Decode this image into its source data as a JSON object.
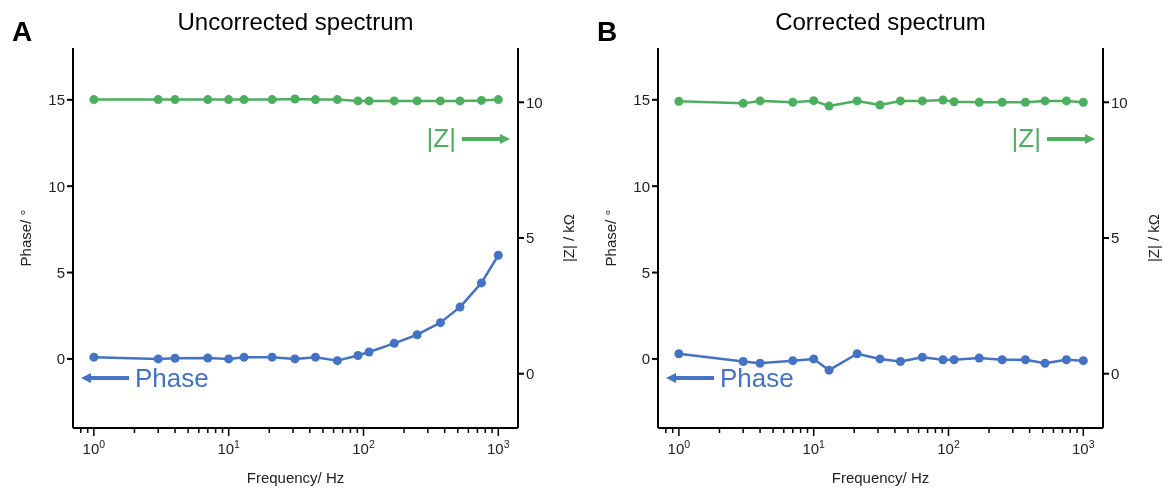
{
  "chart_data": [
    {
      "type": "line",
      "title": "Uncorrected spectrum",
      "xlabel": "Frequency/ Hz",
      "ylabel": "Phase/ °",
      "y2label": "|Z| / kΩ",
      "annotations": [
        "A"
      ],
      "x": [
        1,
        3,
        4,
        7,
        10,
        13,
        21,
        31,
        44,
        64,
        91,
        110,
        169,
        250,
        372,
        520,
        750,
        1000
      ],
      "series": [
        {
          "name": "Phase",
          "color": "#4472c4",
          "values": [
            0.1,
            0,
            0.04,
            0.05,
            0,
            0.1,
            0.1,
            0,
            0.1,
            -0.1,
            0.2,
            0.4,
            0.9,
            1.4,
            2.1,
            3.0,
            4.4,
            6.0
          ]
        },
        {
          "name": "|Z|",
          "color": "#4caf5f",
          "axis": "y2",
          "values": [
            10.1,
            10.1,
            10.1,
            10.1,
            10.1,
            10.1,
            10.1,
            10.12,
            10.1,
            10.1,
            10.05,
            10.05,
            10.05,
            10.05,
            10.05,
            10.05,
            10.07,
            10.1
          ]
        }
      ],
      "log": "x",
      "xlim": [
        0.7,
        1400
      ],
      "xticks": [
        {
          "value": 0.8,
          "label": null
        },
        {
          "value": 0.9,
          "label": null
        },
        {
          "value": 1,
          "label": "10$^{0}$"
        },
        {
          "value": 2,
          "label": null
        },
        {
          "value": 3,
          "label": null
        },
        {
          "value": 4,
          "label": null
        },
        {
          "value": 5,
          "label": null
        },
        {
          "value": 6,
          "label": null
        },
        {
          "value": 7,
          "label": null
        },
        {
          "value": 8,
          "label": null
        },
        {
          "value": 9,
          "label": null
        },
        {
          "value": 10,
          "label": "10$^{1}$"
        },
        {
          "value": 20,
          "label": null
        },
        {
          "value": 30,
          "label": null
        },
        {
          "value": 40,
          "label": null
        },
        {
          "value": 50,
          "label": null
        },
        {
          "value": 60,
          "label": null
        },
        {
          "value": 70,
          "label": null
        },
        {
          "value": 80,
          "label": null
        },
        {
          "value": 90,
          "label": null
        },
        {
          "value": 100,
          "label": "10$^{2}$"
        },
        {
          "value": 200,
          "label": null
        },
        {
          "value": 300,
          "label": null
        },
        {
          "value": 400,
          "label": null
        },
        {
          "value": 500,
          "label": null
        },
        {
          "value": 600,
          "label": null
        },
        {
          "value": 700,
          "label": null
        },
        {
          "value": 800,
          "label": null
        },
        {
          "value": 900,
          "label": null
        },
        {
          "value": 1000,
          "label": "10$^{3}$"
        }
      ],
      "ylim": [
        -4,
        18
      ],
      "yticks": [
        0,
        5,
        10,
        15
      ],
      "y2lim": [
        -2,
        12
      ],
      "y2ticks": [
        0,
        5,
        10
      ],
      "grid": false,
      "legend": "bottom left",
      "marker": "circle",
      "line_style": "solid"
    },
    {
      "type": "line",
      "title": "Corrected spectrum",
      "xlabel": "Frequency/ Hz",
      "ylabel": "Phase/ °",
      "y2label": "|Z| / kΩ",
      "annotations": [
        "B"
      ],
      "x": [
        1,
        3,
        4,
        7,
        10,
        13,
        21,
        31,
        44,
        64,
        91,
        110,
        169,
        250,
        372,
        520,
        750,
        1000
      ],
      "series": [
        {
          "name": "Phase",
          "color": "#4472c4",
          "values": [
            0.3,
            -0.15,
            -0.25,
            -0.1,
            0,
            -0.65,
            0.3,
            0,
            -0.15,
            0.1,
            -0.05,
            -0.05,
            0.05,
            -0.05,
            -0.05,
            -0.25,
            -0.05,
            -0.1
          ]
        },
        {
          "name": "|Z|",
          "color": "#4caf5f",
          "axis": "y2",
          "values": [
            10.04,
            9.96,
            10.05,
            10.0,
            10.06,
            9.86,
            10.05,
            9.9,
            10.05,
            10.05,
            10.08,
            10.02,
            10.0,
            10.0,
            10.0,
            10.05,
            10.05,
            10.0
          ]
        }
      ],
      "log": "x",
      "xlim": [
        0.7,
        1400
      ],
      "xticks": [
        {
          "value": 0.8,
          "label": null
        },
        {
          "value": 0.9,
          "label": null
        },
        {
          "value": 1,
          "label": "10$^{0}$"
        },
        {
          "value": 2,
          "label": null
        },
        {
          "value": 3,
          "label": null
        },
        {
          "value": 4,
          "label": null
        },
        {
          "value": 5,
          "label": null
        },
        {
          "value": 6,
          "label": null
        },
        {
          "value": 7,
          "label": null
        },
        {
          "value": 8,
          "label": null
        },
        {
          "value": 9,
          "label": null
        },
        {
          "value": 10,
          "label": "10$^{1}$"
        },
        {
          "value": 20,
          "label": null
        },
        {
          "value": 30,
          "label": null
        },
        {
          "value": 40,
          "label": null
        },
        {
          "value": 50,
          "label": null
        },
        {
          "value": 60,
          "label": null
        },
        {
          "value": 70,
          "label": null
        },
        {
          "value": 80,
          "label": null
        },
        {
          "value": 90,
          "label": null
        },
        {
          "value": 100,
          "label": "10$^{2}$"
        },
        {
          "value": 200,
          "label": null
        },
        {
          "value": 300,
          "label": null
        },
        {
          "value": 400,
          "label": null
        },
        {
          "value": 500,
          "label": null
        },
        {
          "value": 600,
          "label": null
        },
        {
          "value": 700,
          "label": null
        },
        {
          "value": 800,
          "label": null
        },
        {
          "value": 900,
          "label": null
        },
        {
          "value": 1000,
          "label": "10$^{3}$"
        }
      ],
      "ylim": [
        -4,
        18
      ],
      "yticks": [
        0,
        5,
        10,
        15
      ],
      "y2lim": [
        -2,
        12
      ],
      "y2ticks": [
        0,
        5,
        10
      ],
      "grid": false,
      "legend": "bottom left",
      "marker": "circle",
      "line_style": "solid"
    }
  ]
}
